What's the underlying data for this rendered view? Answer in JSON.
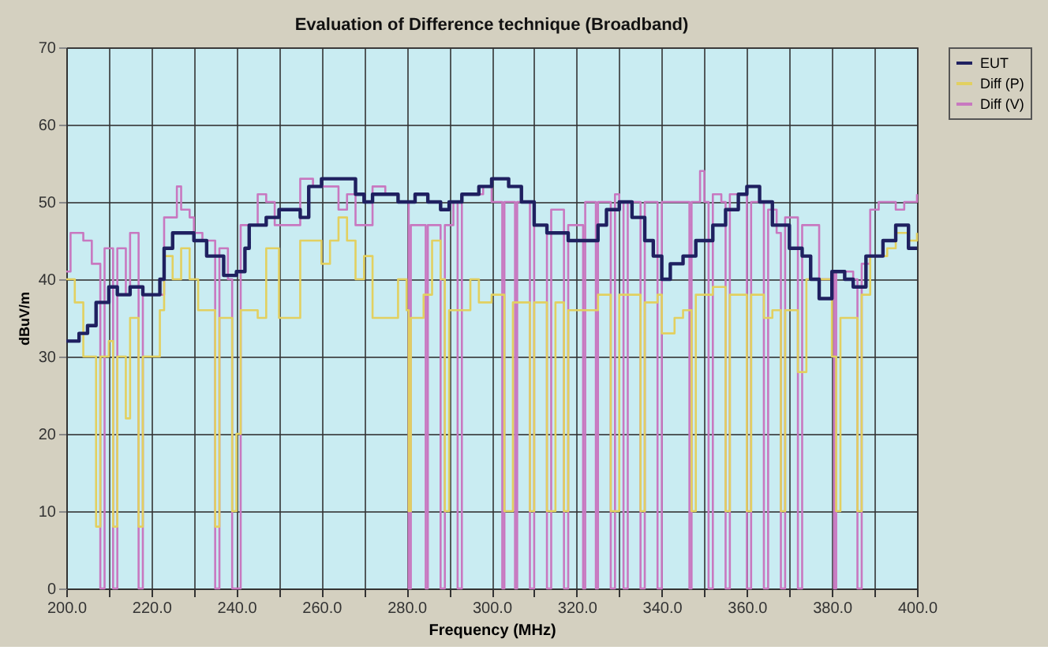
{
  "chart_data": {
    "type": "step",
    "title": "Evaluation of Difference technique (Broadband)",
    "xlabel": "Frequency (MHz)",
    "ylabel": "dBuV/m",
    "xlim": [
      200,
      400
    ],
    "ylim": [
      0,
      70
    ],
    "xticks": [
      {
        "value": 200,
        "label": "200.0"
      },
      {
        "value": 210,
        "label": null
      },
      {
        "value": 220,
        "label": "220.0"
      },
      {
        "value": 230,
        "label": null
      },
      {
        "value": 240,
        "label": "240.0"
      },
      {
        "value": 250,
        "label": null
      },
      {
        "value": 260,
        "label": "260.0"
      },
      {
        "value": 270,
        "label": null
      },
      {
        "value": 280,
        "label": "280.0"
      },
      {
        "value": 290,
        "label": null
      },
      {
        "value": 300,
        "label": "300.0"
      },
      {
        "value": 310,
        "label": null
      },
      {
        "value": 320,
        "label": "320.0"
      },
      {
        "value": 330,
        "label": null
      },
      {
        "value": 340,
        "label": "340.0"
      },
      {
        "value": 350,
        "label": null
      },
      {
        "value": 360,
        "label": "360.0"
      },
      {
        "value": 370,
        "label": null
      },
      {
        "value": 380,
        "label": "380.0"
      },
      {
        "value": 390,
        "label": null
      },
      {
        "value": 400,
        "label": "400.0"
      }
    ],
    "yticks": [
      0,
      10,
      20,
      30,
      40,
      50,
      60,
      70
    ],
    "grid": true,
    "legend": "right",
    "marker": "none",
    "line_style": "solid",
    "series": [
      {
        "name": "EUT",
        "color": "#1f2060",
        "x": [
          200,
          203,
          205,
          207,
          210,
          212,
          215,
          218,
          222,
          223,
          225,
          230,
          233,
          237,
          240,
          242,
          243,
          247,
          250,
          255,
          257,
          260,
          265,
          268,
          270,
          272,
          275,
          278,
          282,
          285,
          288,
          290,
          293,
          297,
          300,
          304,
          307,
          310,
          313,
          318,
          322,
          325,
          327,
          330,
          333,
          336,
          338,
          340,
          342,
          345,
          348,
          352,
          355,
          358,
          360,
          363,
          366,
          370,
          373,
          375,
          377,
          380,
          383,
          385,
          388,
          392,
          395,
          398,
          400
        ],
        "values": [
          32,
          33,
          34,
          37,
          39,
          38,
          39,
          38,
          40,
          44,
          46,
          45,
          43,
          40.5,
          41,
          44,
          47,
          48,
          49,
          48,
          52,
          53,
          53,
          51,
          50,
          51,
          51,
          50,
          51,
          50,
          49,
          50,
          51,
          52,
          53,
          52,
          50,
          47,
          46,
          45,
          45,
          47,
          49,
          50,
          48,
          45,
          43,
          40,
          42,
          43,
          45,
          47,
          49,
          51,
          52,
          50,
          47,
          44,
          43,
          40,
          37.5,
          41,
          40,
          39,
          43,
          45,
          47,
          44,
          44
        ]
      },
      {
        "name": "Diff (P)",
        "color": "#e2d060",
        "x": [
          200,
          202,
          204,
          206,
          207,
          208,
          210,
          211,
          212,
          214,
          215,
          216,
          217,
          218,
          222,
          223,
          225,
          227,
          229,
          231,
          233,
          235,
          236,
          239,
          240,
          241,
          245,
          247,
          249,
          250,
          254,
          255,
          258,
          260,
          262,
          264,
          266,
          268,
          270,
          272,
          276,
          278,
          280,
          280.5,
          281,
          284,
          286,
          288,
          289,
          290,
          293,
          295,
          297,
          300,
          302,
          303,
          305,
          309,
          310,
          313,
          315,
          317,
          318,
          322,
          325,
          328,
          330,
          333,
          335,
          336,
          339,
          340,
          343,
          345,
          347,
          348,
          352,
          355,
          356,
          360,
          361,
          364,
          366,
          368,
          369,
          372,
          374,
          377,
          380,
          381,
          382,
          386,
          387,
          389,
          391,
          393,
          395,
          398,
          400
        ],
        "values": [
          40,
          37,
          30,
          30,
          8,
          30,
          32,
          8,
          30,
          22,
          35,
          35,
          8,
          30,
          36,
          43,
          40,
          44,
          40,
          36,
          36,
          8,
          35,
          10,
          20,
          36,
          35,
          44,
          44,
          35,
          35,
          45,
          45,
          42,
          45,
          48,
          45,
          40,
          43,
          35,
          35,
          40,
          36,
          10,
          35,
          38,
          45,
          40,
          10,
          36,
          36,
          40,
          37,
          38,
          38,
          10,
          37,
          10,
          37,
          10,
          37,
          10,
          36,
          36,
          38,
          10,
          38,
          38,
          10,
          37,
          38,
          33,
          35,
          36,
          10,
          38,
          39,
          10,
          38,
          10,
          38,
          35,
          36,
          10,
          36,
          28,
          40,
          40,
          30,
          10,
          35,
          10,
          38,
          43,
          43,
          44,
          46,
          45,
          46
        ]
      },
      {
        "name": "Diff (V)",
        "color": "#c878c0",
        "x": [
          200,
          201,
          204,
          206,
          207.5,
          208,
          209,
          210,
          211,
          212,
          214,
          215,
          216,
          217,
          218,
          222,
          223,
          225,
          226,
          227,
          229,
          230,
          232,
          234,
          235,
          236,
          238,
          239,
          240,
          241,
          243,
          245,
          247,
          249,
          254,
          255,
          258,
          262,
          264,
          266,
          268,
          270,
          272,
          275,
          278,
          280,
          280.5,
          281,
          284,
          284.5,
          285,
          287,
          288,
          289,
          291,
          292,
          293,
          296,
          298,
          300,
          302,
          302.5,
          303,
          305,
          305.5,
          306,
          308,
          309,
          310,
          312,
          313,
          314,
          316,
          317,
          318,
          321,
          321.5,
          322,
          324,
          324.5,
          325,
          327,
          328,
          329,
          330,
          331,
          332,
          334,
          335,
          336,
          338,
          339,
          340,
          343,
          346,
          346.5,
          347,
          349,
          350,
          351,
          352,
          354,
          355,
          356,
          359,
          360,
          361,
          363,
          364,
          365,
          367,
          368,
          369,
          371,
          372,
          373,
          377,
          380,
          380.5,
          381,
          385,
          386,
          387,
          389,
          391,
          393,
          395,
          397,
          400
        ],
        "values": [
          41,
          46,
          45,
          42,
          42,
          0,
          44,
          44,
          0,
          44,
          38,
          46,
          46,
          0,
          38,
          38,
          48,
          48,
          52,
          49,
          48,
          46,
          45,
          45,
          0,
          44,
          40,
          0,
          0,
          47,
          47,
          51,
          50,
          47,
          47,
          53,
          52,
          52,
          49,
          51,
          47,
          47,
          52,
          51,
          50,
          50,
          0,
          47,
          47,
          0,
          47,
          47,
          0,
          47,
          50,
          0,
          51,
          51,
          52,
          50,
          50,
          0,
          50,
          50,
          0,
          50,
          50,
          0,
          47,
          47,
          0,
          49,
          49,
          0,
          47,
          47,
          0,
          50,
          50,
          0,
          50,
          50,
          0,
          51,
          50,
          0,
          50,
          50,
          0,
          50,
          50,
          0,
          50,
          50,
          50,
          0,
          50,
          54,
          50,
          0,
          51,
          50,
          0,
          51,
          51,
          0,
          50,
          50,
          0,
          49,
          46,
          0,
          48,
          48,
          0,
          47,
          40,
          41,
          0,
          41,
          40,
          0,
          42,
          49,
          50,
          50,
          49,
          50,
          51
        ]
      }
    ]
  }
}
